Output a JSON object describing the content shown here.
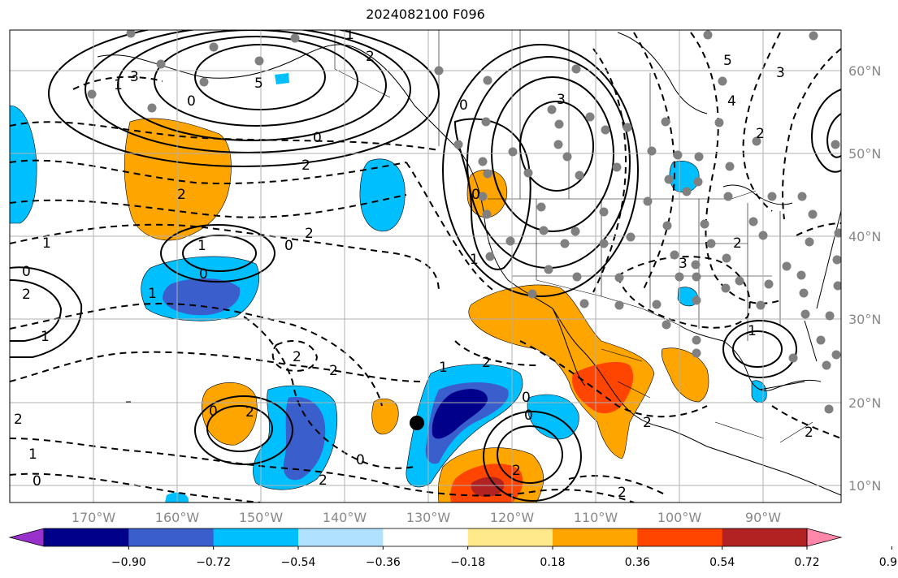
{
  "title": "2024082100 F096",
  "map": {
    "lon_range": [
      -178,
      -82
    ],
    "lat_range": [
      8,
      65
    ],
    "longitude_ticks": [
      "170°W",
      "160°W",
      "150°W",
      "140°W",
      "130°W",
      "120°W",
      "110°W",
      "100°W",
      "90°W"
    ],
    "latitude_ticks": [
      "60°N",
      "50°N",
      "40°N",
      "30°N",
      "20°N",
      "10°N"
    ],
    "grid": true,
    "contour_labels": [
      "1",
      "3",
      "5",
      "0",
      "2",
      "2",
      "1",
      "0",
      "2",
      "3",
      "1",
      "0",
      "1",
      "2",
      "2",
      "1",
      "2",
      "0",
      "2",
      "2",
      "2",
      "1",
      "0",
      "1",
      "0",
      "0",
      "2",
      "2",
      "2",
      "0",
      "0",
      "2",
      "2",
      "3",
      "2",
      "1",
      "1",
      "5",
      "4",
      "3",
      "2",
      "0",
      "2",
      "1",
      "0",
      "0"
    ],
    "marker": {
      "label": "",
      "lon": -131.5,
      "lat": 17.3,
      "color": "#000000"
    }
  },
  "colorbar": {
    "levels": [
      "−0.90",
      "−0.72",
      "−0.54",
      "−0.36",
      "−0.18",
      "0.18",
      "0.36",
      "0.54",
      "0.72",
      "0.90"
    ],
    "colors": [
      "#9932cc",
      "#00008b",
      "#3a5fcd",
      "#00bfff",
      "#b0e2ff",
      "#ffffff",
      "#ffe98a",
      "#ffa500",
      "#ff4500",
      "#b22222",
      "#ff88aa"
    ]
  }
}
